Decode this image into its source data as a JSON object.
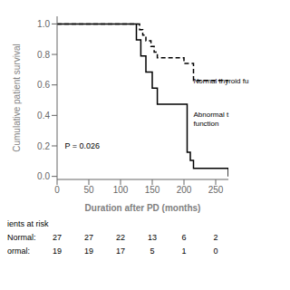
{
  "chart_data": {
    "type": "step",
    "xlabel": "Duration after PD (months)",
    "ylabel": "Cumulative patient survival",
    "xlim": [
      0,
      270
    ],
    "ylim": [
      -0.02,
      1.05
    ],
    "xticks": [
      0,
      50,
      100,
      150,
      200,
      250
    ],
    "yticks": [
      {
        "value": 0.0,
        "label": "0.0"
      },
      {
        "value": 0.2,
        "label": "0.2"
      },
      {
        "value": 0.4,
        "label": "0.4"
      },
      {
        "value": 0.6,
        "label": "0.6"
      },
      {
        "value": 0.8,
        "label": "0.8"
      },
      {
        "value": 1.0,
        "label": "1.0"
      }
    ],
    "series": [
      {
        "x": [
          0,
          120,
          130,
          135,
          140,
          148,
          153,
          158,
          200,
          215,
          270
        ],
        "values": [
          1.0,
          1.0,
          0.963,
          0.926,
          0.889,
          0.852,
          0.815,
          0.778,
          0.741,
          0.63,
          0.63
        ],
        "color": "#000000",
        "line_style": "dashed"
      },
      {
        "x": [
          0,
          115,
          125,
          132,
          140,
          150,
          158,
          200,
          205,
          210,
          215,
          270
        ],
        "values": [
          1.0,
          1.0,
          0.895,
          0.79,
          0.684,
          0.579,
          0.474,
          0.474,
          0.158,
          0.105,
          0.053,
          0.0
        ],
        "color": "#000000",
        "line_style": "solid"
      }
    ],
    "annotations": [
      {
        "text": "P = 0.026",
        "x": 12,
        "y": 0.18
      },
      {
        "text": "Normal thyroid fu",
        "x": 215,
        "y": 0.63
      },
      {
        "text": "Abnormal t\nfunction",
        "x": 215,
        "y": 0.38
      }
    ],
    "at_risk": {
      "title": "ients at risk",
      "rows": [
        {
          "label": "Normal:",
          "values": [
            27,
            27,
            22,
            13,
            6,
            2
          ]
        },
        {
          "label": "ormal:",
          "values": [
            19,
            19,
            17,
            5,
            1,
            0
          ]
        }
      ]
    }
  }
}
